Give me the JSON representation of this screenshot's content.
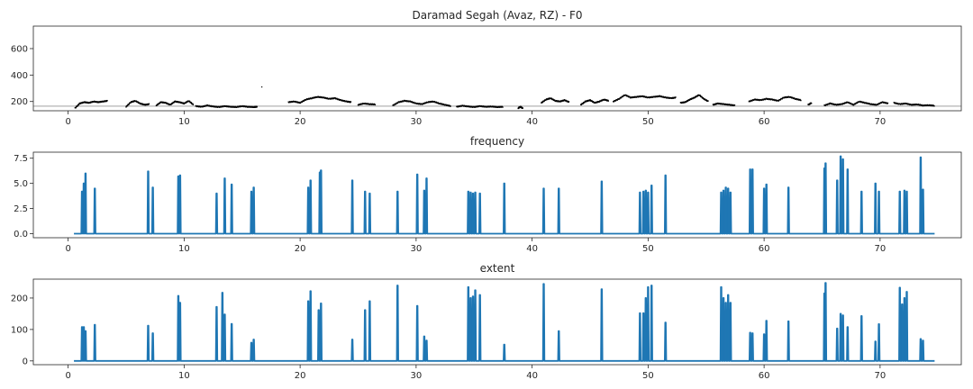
{
  "chart_data": [
    {
      "type": "scatter",
      "title": "Daramad Segah (Avaz, RZ) - F0",
      "xlim": [
        -3,
        77
      ],
      "ylim": [
        130,
        770
      ],
      "xticks": [
        0,
        10,
        20,
        30,
        40,
        50,
        60,
        70
      ],
      "yticks": [
        200,
        400,
        600
      ],
      "tonic_line": 165,
      "point_color": "#000000",
      "line_color": "#b3b3b3",
      "segments": [
        {
          "x": [
            0.6,
            1.0,
            1.4,
            1.8,
            2.2,
            2.6,
            3.0,
            3.4
          ],
          "y": [
            150,
            185,
            195,
            190,
            200,
            195,
            200,
            205
          ]
        },
        {
          "x": [
            5.0,
            5.4,
            5.8,
            6.2,
            6.6,
            7.0
          ],
          "y": [
            160,
            195,
            205,
            185,
            175,
            180
          ]
        },
        {
          "x": [
            7.6,
            8.0,
            8.4,
            8.8,
            9.2,
            9.6,
            10.0,
            10.4,
            10.8
          ],
          "y": [
            170,
            195,
            190,
            175,
            200,
            195,
            185,
            205,
            175
          ]
        },
        {
          "x": [
            11.0,
            11.5,
            12.0,
            12.5,
            13.0,
            13.5,
            14.0,
            14.5,
            15.0,
            15.5,
            16.0,
            16.3
          ],
          "y": [
            165,
            160,
            170,
            162,
            158,
            165,
            160,
            158,
            165,
            160,
            158,
            160
          ]
        },
        {
          "x": [
            16.7
          ],
          "y": [
            310
          ]
        },
        {
          "x": [
            19.0,
            19.5,
            20.0,
            20.5,
            21.0,
            21.5,
            22.0,
            22.5,
            23.0,
            23.5,
            24.0,
            24.4
          ],
          "y": [
            195,
            200,
            190,
            215,
            225,
            235,
            230,
            220,
            225,
            210,
            200,
            195
          ]
        },
        {
          "x": [
            25.0,
            25.5,
            26.0,
            26.5
          ],
          "y": [
            175,
            185,
            180,
            178
          ]
        },
        {
          "x": [
            28.0,
            28.5,
            29.0,
            29.5,
            30.0,
            30.5,
            31.0,
            31.5,
            32.0,
            32.5,
            33.0
          ],
          "y": [
            170,
            195,
            205,
            200,
            185,
            180,
            195,
            200,
            185,
            175,
            165
          ]
        },
        {
          "x": [
            33.5,
            34.0,
            34.5,
            35.0,
            35.5,
            36.0,
            36.5,
            37.0,
            37.5
          ],
          "y": [
            160,
            168,
            162,
            158,
            165,
            160,
            162,
            158,
            160
          ]
        },
        {
          "x": [
            38.8,
            39.0,
            39.2
          ],
          "y": [
            150,
            160,
            148
          ]
        },
        {
          "x": [
            40.8,
            41.2,
            41.6,
            42.0,
            42.4,
            42.8,
            43.2
          ],
          "y": [
            190,
            215,
            225,
            205,
            200,
            210,
            195
          ]
        },
        {
          "x": [
            44.2,
            44.6,
            45.0,
            45.4,
            45.8,
            46.2,
            46.6
          ],
          "y": [
            175,
            200,
            210,
            190,
            200,
            215,
            205
          ]
        },
        {
          "x": [
            47.0,
            47.5,
            48.0,
            48.5,
            49.0,
            49.5,
            50.0,
            50.5,
            51.0,
            51.5,
            52.0,
            52.4
          ],
          "y": [
            200,
            220,
            250,
            230,
            235,
            240,
            230,
            235,
            240,
            230,
            225,
            230
          ]
        },
        {
          "x": [
            52.8,
            53.2,
            53.6,
            54.0,
            54.4,
            54.8,
            55.2
          ],
          "y": [
            190,
            195,
            215,
            230,
            250,
            220,
            200
          ]
        },
        {
          "x": [
            55.6,
            56.0,
            56.5,
            57.0,
            57.5
          ],
          "y": [
            175,
            185,
            180,
            175,
            170
          ]
        },
        {
          "x": [
            58.7,
            59.2,
            59.7,
            60.2,
            60.7,
            61.2,
            61.7,
            62.2,
            62.7,
            63.2
          ],
          "y": [
            200,
            215,
            210,
            220,
            215,
            205,
            230,
            235,
            220,
            210
          ]
        },
        {
          "x": [
            63.8,
            64.1
          ],
          "y": [
            175,
            190
          ]
        },
        {
          "x": [
            65.2,
            65.7,
            66.2,
            66.7,
            67.2,
            67.7,
            68.2,
            68.7,
            69.2,
            69.7,
            70.2,
            70.7
          ],
          "y": [
            170,
            185,
            175,
            180,
            195,
            175,
            200,
            190,
            180,
            175,
            195,
            185
          ]
        },
        {
          "x": [
            71.2,
            71.7,
            72.2,
            72.7,
            73.2,
            73.7,
            74.2,
            74.7
          ],
          "y": [
            190,
            180,
            185,
            175,
            178,
            170,
            172,
            168
          ]
        }
      ]
    },
    {
      "type": "line",
      "title": "frequency",
      "xlim": [
        -3,
        77
      ],
      "ylim": [
        -0.4,
        8.1
      ],
      "xticks": [
        0,
        10,
        20,
        30,
        40,
        50,
        60,
        70
      ],
      "yticks": [
        "0.0",
        "2.5",
        "5.0",
        "7.5"
      ],
      "color": "#1f77b4",
      "x_range": [
        0.5,
        74.7
      ],
      "spikes": [
        {
          "x": 1.2,
          "y": 4.2
        },
        {
          "x": 1.35,
          "y": 5.0
        },
        {
          "x": 1.5,
          "y": 6.0
        },
        {
          "x": 2.3,
          "y": 4.5
        },
        {
          "x": 6.9,
          "y": 6.2
        },
        {
          "x": 7.3,
          "y": 4.6
        },
        {
          "x": 9.5,
          "y": 5.7
        },
        {
          "x": 9.65,
          "y": 5.8
        },
        {
          "x": 12.8,
          "y": 4.0
        },
        {
          "x": 13.5,
          "y": 5.5
        },
        {
          "x": 14.1,
          "y": 4.9
        },
        {
          "x": 15.8,
          "y": 4.2
        },
        {
          "x": 16.0,
          "y": 4.6
        },
        {
          "x": 20.7,
          "y": 4.6
        },
        {
          "x": 20.9,
          "y": 5.3
        },
        {
          "x": 21.7,
          "y": 6.1
        },
        {
          "x": 21.8,
          "y": 6.3
        },
        {
          "x": 24.5,
          "y": 5.3
        },
        {
          "x": 25.6,
          "y": 4.2
        },
        {
          "x": 26.0,
          "y": 4.0
        },
        {
          "x": 28.4,
          "y": 4.2
        },
        {
          "x": 30.1,
          "y": 5.9
        },
        {
          "x": 30.7,
          "y": 4.3
        },
        {
          "x": 30.9,
          "y": 5.5
        },
        {
          "x": 34.5,
          "y": 4.2
        },
        {
          "x": 34.7,
          "y": 4.1
        },
        {
          "x": 34.9,
          "y": 4.0
        },
        {
          "x": 35.1,
          "y": 4.1
        },
        {
          "x": 35.5,
          "y": 4.0
        },
        {
          "x": 37.6,
          "y": 5.0
        },
        {
          "x": 41.0,
          "y": 4.5
        },
        {
          "x": 42.3,
          "y": 4.5
        },
        {
          "x": 46.0,
          "y": 5.2
        },
        {
          "x": 49.3,
          "y": 4.1
        },
        {
          "x": 49.6,
          "y": 4.2
        },
        {
          "x": 49.8,
          "y": 4.3
        },
        {
          "x": 50.0,
          "y": 4.1
        },
        {
          "x": 50.3,
          "y": 4.8
        },
        {
          "x": 51.5,
          "y": 5.8
        },
        {
          "x": 56.3,
          "y": 4.1
        },
        {
          "x": 56.5,
          "y": 4.3
        },
        {
          "x": 56.7,
          "y": 4.6
        },
        {
          "x": 56.9,
          "y": 4.5
        },
        {
          "x": 57.1,
          "y": 4.1
        },
        {
          "x": 58.8,
          "y": 6.4
        },
        {
          "x": 59.0,
          "y": 6.4
        },
        {
          "x": 60.0,
          "y": 4.5
        },
        {
          "x": 60.2,
          "y": 4.9
        },
        {
          "x": 62.1,
          "y": 4.6
        },
        {
          "x": 65.2,
          "y": 6.5
        },
        {
          "x": 65.3,
          "y": 7.0
        },
        {
          "x": 66.3,
          "y": 5.3
        },
        {
          "x": 66.6,
          "y": 7.7
        },
        {
          "x": 66.8,
          "y": 7.4
        },
        {
          "x": 67.2,
          "y": 6.4
        },
        {
          "x": 68.4,
          "y": 4.2
        },
        {
          "x": 69.6,
          "y": 5.0
        },
        {
          "x": 69.9,
          "y": 4.2
        },
        {
          "x": 71.7,
          "y": 4.2
        },
        {
          "x": 72.1,
          "y": 4.3
        },
        {
          "x": 72.3,
          "y": 4.2
        },
        {
          "x": 73.5,
          "y": 7.6
        },
        {
          "x": 73.7,
          "y": 4.4
        }
      ]
    },
    {
      "type": "line",
      "title": "extent",
      "xlim": [
        -3,
        77
      ],
      "ylim": [
        -12,
        260
      ],
      "xticks": [
        0,
        10,
        20,
        30,
        40,
        50,
        60,
        70
      ],
      "yticks": [
        0,
        100,
        200
      ],
      "color": "#1f77b4",
      "x_range": [
        0.5,
        74.7
      ],
      "spikes": [
        {
          "x": 1.2,
          "y": 108
        },
        {
          "x": 1.35,
          "y": 108
        },
        {
          "x": 1.5,
          "y": 95
        },
        {
          "x": 2.3,
          "y": 115
        },
        {
          "x": 6.9,
          "y": 112
        },
        {
          "x": 7.3,
          "y": 88
        },
        {
          "x": 9.5,
          "y": 207
        },
        {
          "x": 9.65,
          "y": 185
        },
        {
          "x": 12.8,
          "y": 172
        },
        {
          "x": 13.3,
          "y": 217
        },
        {
          "x": 13.5,
          "y": 148
        },
        {
          "x": 14.1,
          "y": 118
        },
        {
          "x": 15.8,
          "y": 58
        },
        {
          "x": 16.0,
          "y": 68
        },
        {
          "x": 20.7,
          "y": 190
        },
        {
          "x": 20.9,
          "y": 222
        },
        {
          "x": 21.6,
          "y": 162
        },
        {
          "x": 21.8,
          "y": 183
        },
        {
          "x": 24.5,
          "y": 68
        },
        {
          "x": 25.6,
          "y": 162
        },
        {
          "x": 26.0,
          "y": 190
        },
        {
          "x": 28.4,
          "y": 240
        },
        {
          "x": 30.1,
          "y": 175
        },
        {
          "x": 30.7,
          "y": 78
        },
        {
          "x": 30.9,
          "y": 65
        },
        {
          "x": 34.5,
          "y": 235
        },
        {
          "x": 34.7,
          "y": 200
        },
        {
          "x": 34.9,
          "y": 205
        },
        {
          "x": 35.1,
          "y": 225
        },
        {
          "x": 35.5,
          "y": 210
        },
        {
          "x": 37.6,
          "y": 52
        },
        {
          "x": 41.0,
          "y": 245
        },
        {
          "x": 42.3,
          "y": 95
        },
        {
          "x": 46.0,
          "y": 228
        },
        {
          "x": 49.3,
          "y": 152
        },
        {
          "x": 49.6,
          "y": 152
        },
        {
          "x": 49.8,
          "y": 200
        },
        {
          "x": 50.0,
          "y": 235
        },
        {
          "x": 50.3,
          "y": 240
        },
        {
          "x": 51.5,
          "y": 122
        },
        {
          "x": 56.3,
          "y": 235
        },
        {
          "x": 56.5,
          "y": 200
        },
        {
          "x": 56.7,
          "y": 185
        },
        {
          "x": 56.9,
          "y": 210
        },
        {
          "x": 57.1,
          "y": 185
        },
        {
          "x": 58.8,
          "y": 90
        },
        {
          "x": 59.0,
          "y": 88
        },
        {
          "x": 60.0,
          "y": 85
        },
        {
          "x": 60.2,
          "y": 128
        },
        {
          "x": 62.1,
          "y": 126
        },
        {
          "x": 65.2,
          "y": 215
        },
        {
          "x": 65.3,
          "y": 248
        },
        {
          "x": 66.3,
          "y": 103
        },
        {
          "x": 66.6,
          "y": 150
        },
        {
          "x": 66.8,
          "y": 145
        },
        {
          "x": 67.2,
          "y": 108
        },
        {
          "x": 68.4,
          "y": 143
        },
        {
          "x": 69.6,
          "y": 62
        },
        {
          "x": 69.9,
          "y": 117
        },
        {
          "x": 71.7,
          "y": 233
        },
        {
          "x": 71.9,
          "y": 180
        },
        {
          "x": 72.1,
          "y": 200
        },
        {
          "x": 72.3,
          "y": 220
        },
        {
          "x": 73.5,
          "y": 70
        },
        {
          "x": 73.7,
          "y": 65
        }
      ]
    }
  ]
}
